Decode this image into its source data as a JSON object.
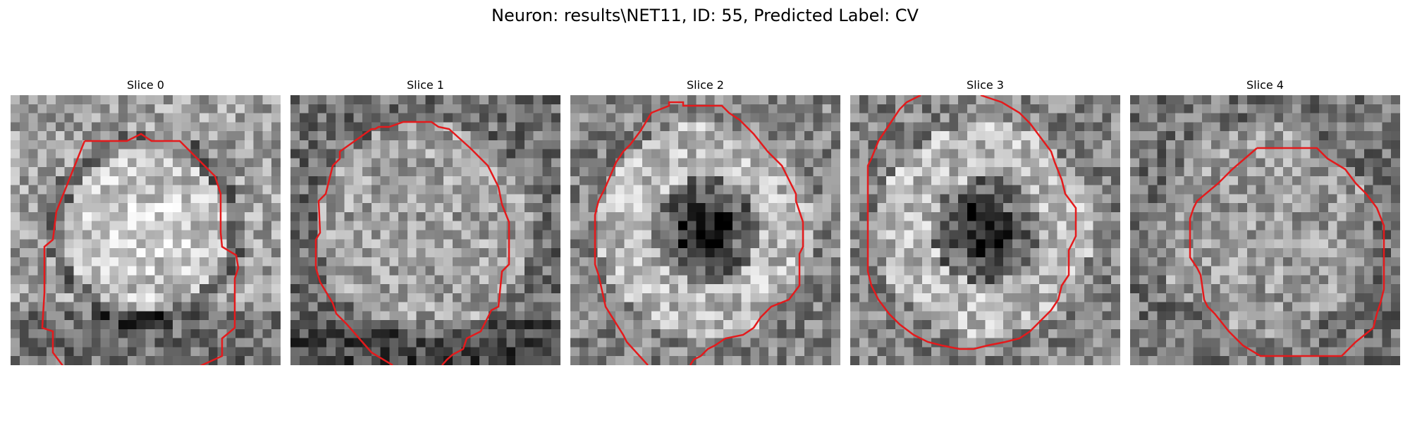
{
  "figure": {
    "title": "Neuron: results\\NET11, ID: 55, Predicted Label: CV"
  },
  "colors": {
    "contour": "#e41a1c",
    "background": "#ffffff"
  },
  "panels": [
    {
      "title": "Slice 0",
      "pattern": "bright-blob"
    },
    {
      "title": "Slice 1",
      "pattern": "noisy-ring"
    },
    {
      "title": "Slice 2",
      "pattern": "dark-center-ring"
    },
    {
      "title": "Slice 3",
      "pattern": "dark-center-ring"
    },
    {
      "title": "Slice 4",
      "pattern": "noisy-faint"
    }
  ]
}
